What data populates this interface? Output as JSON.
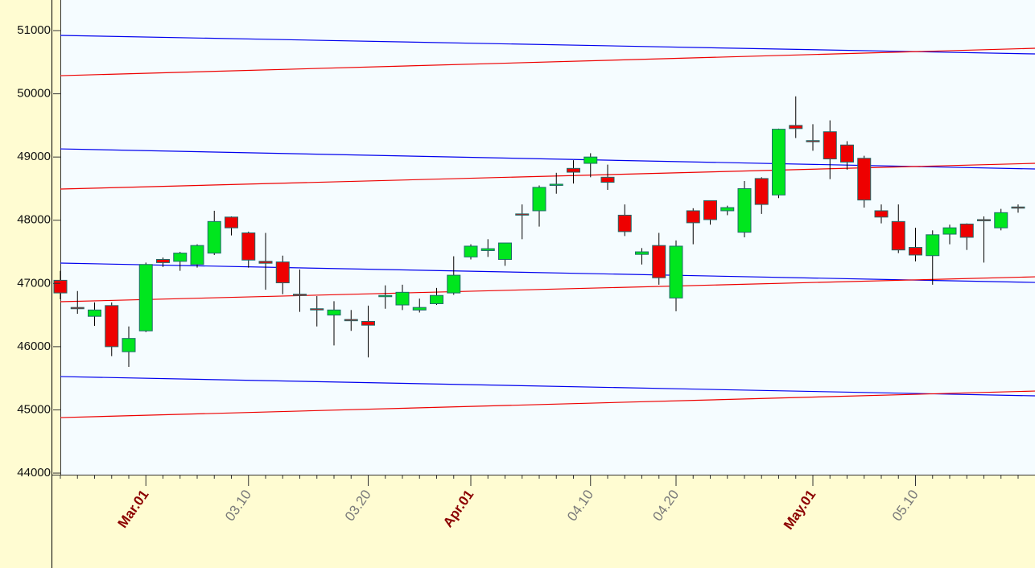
{
  "chart_data": {
    "type": "candlestick",
    "categories": [
      null,
      null,
      null,
      null,
      null,
      "Mar.01",
      null,
      null,
      null,
      null,
      null,
      "03.10",
      null,
      null,
      null,
      null,
      null,
      null,
      "03.20",
      null,
      null,
      null,
      null,
      null,
      "Apr.01",
      null,
      null,
      null,
      null,
      null,
      null,
      "04.10",
      null,
      null,
      null,
      null,
      "04.20",
      null,
      null,
      null,
      null,
      null,
      null,
      null,
      "May.01",
      null,
      null,
      null,
      null,
      null,
      "05.10",
      null,
      null,
      null,
      null,
      null,
      null
    ],
    "open": [
      47050,
      46620,
      46480,
      46650,
      45920,
      46250,
      47380,
      47350,
      47300,
      47480,
      48050,
      47800,
      47350,
      47340,
      46830,
      46600,
      46500,
      46430,
      46400,
      46800,
      46660,
      46580,
      46680,
      46850,
      47420,
      47520,
      47380,
      48100,
      48150,
      48560,
      48820,
      48900,
      48680,
      48080,
      47460,
      47600,
      46770,
      48150,
      48310,
      48150,
      47810,
      48660,
      48400,
      49500,
      49260,
      49400,
      49190,
      48980,
      48150,
      47980,
      47570,
      47440,
      47780,
      47940,
      48010,
      47880,
      48210
    ],
    "high": [
      47200,
      46880,
      46700,
      46700,
      46320,
      47330,
      47410,
      47500,
      47620,
      48150,
      48060,
      47820,
      47800,
      47440,
      47220,
      46800,
      46720,
      46580,
      46650,
      46970,
      46980,
      46760,
      46930,
      47430,
      47620,
      47700,
      47640,
      48250,
      48550,
      48750,
      48950,
      49060,
      48880,
      48250,
      47560,
      47800,
      47680,
      48190,
      48310,
      48230,
      48620,
      48680,
      49450,
      49960,
      49520,
      49580,
      49250,
      49020,
      48250,
      48250,
      47880,
      47840,
      47930,
      47950,
      48060,
      48180,
      48250
    ],
    "low": [
      46750,
      46520,
      46330,
      45850,
      45680,
      46230,
      47260,
      47200,
      47250,
      47450,
      47760,
      47250,
      46900,
      46830,
      46550,
      46320,
      46020,
      46250,
      45830,
      46600,
      46580,
      46540,
      46660,
      46820,
      47380,
      47420,
      47280,
      47700,
      47900,
      48420,
      48580,
      48680,
      48480,
      47750,
      47300,
      46980,
      46560,
      47620,
      47930,
      48080,
      47730,
      48100,
      48350,
      49300,
      49100,
      48650,
      48800,
      48200,
      47950,
      47480,
      47350,
      46980,
      47620,
      47530,
      47330,
      47840,
      48120
    ],
    "close": [
      46850,
      46600,
      46580,
      46000,
      46130,
      47300,
      47330,
      47480,
      47600,
      47980,
      47880,
      47370,
      47320,
      47010,
      46820,
      46590,
      46580,
      46410,
      46340,
      46810,
      46860,
      46620,
      46810,
      47130,
      47590,
      47550,
      47640,
      48090,
      48520,
      48570,
      48760,
      49000,
      48600,
      47820,
      47500,
      47090,
      47590,
      47960,
      48010,
      48200,
      48500,
      48250,
      49440,
      49450,
      49250,
      48970,
      48920,
      48320,
      48050,
      47530,
      47450,
      47770,
      47880,
      47730,
      48000,
      48120,
      48200
    ],
    "up_color": "#00e61e",
    "down_color": "#ee0000",
    "outline_color": "#1f6b6b",
    "lines": [
      {
        "color": "#0000ee",
        "values": [
          50924,
          50631
        ]
      },
      {
        "color": "#ee0000",
        "values": [
          50287,
          50720
        ]
      },
      {
        "color": "#0000ee",
        "values": [
          49129,
          48811
        ]
      },
      {
        "color": "#ee0000",
        "values": [
          48493,
          48900
        ]
      },
      {
        "color": "#0000ee",
        "values": [
          47322,
          47016
        ]
      },
      {
        "color": "#ee0000",
        "values": [
          46711,
          47105
        ]
      },
      {
        "color": "#0000ee",
        "values": [
          45527,
          45222
        ]
      },
      {
        "color": "#ee0000",
        "values": [
          44878,
          45298
        ]
      }
    ],
    "ylim": [
      43975,
      51484
    ],
    "yticks": [
      44000,
      45000,
      46000,
      47000,
      48000,
      49000,
      50000,
      51000
    ]
  }
}
